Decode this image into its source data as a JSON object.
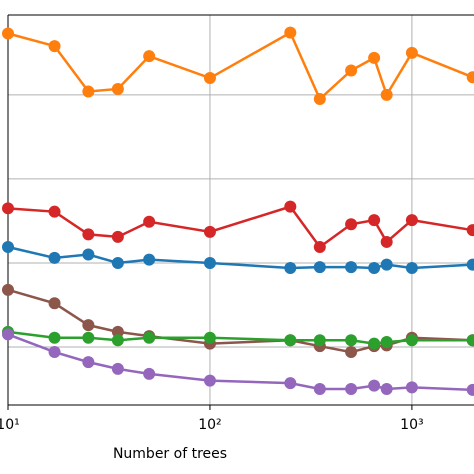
{
  "chart_data": {
    "type": "line",
    "xlabel": "Number of trees",
    "xscale": "log",
    "grid": true,
    "x": [
      10,
      17,
      25,
      35,
      50,
      100,
      250,
      350,
      500,
      650,
      750,
      1000,
      2000
    ],
    "xlim": [
      10,
      2030
    ],
    "xticks": [
      {
        "value": 10,
        "label": "10¹"
      },
      {
        "value": 100,
        "label": "10²"
      },
      {
        "value": 1000,
        "label": "10³"
      }
    ],
    "ylim": [
      0.31,
      4.95
    ],
    "yticks": [
      1,
      2,
      3,
      4
    ],
    "series": [
      {
        "color": "#ff7f0e",
        "values": [
          4.73,
          4.58,
          4.04,
          4.07,
          4.46,
          4.2,
          4.74,
          3.95,
          4.29,
          4.44,
          4.0,
          4.5,
          4.21
        ]
      },
      {
        "color": "#d62728",
        "values": [
          2.65,
          2.61,
          2.34,
          2.31,
          2.49,
          2.37,
          2.67,
          2.19,
          2.46,
          2.51,
          2.25,
          2.51,
          2.39
        ]
      },
      {
        "color": "#1f77b4",
        "values": [
          2.19,
          2.06,
          2.1,
          2.0,
          2.04,
          2.0,
          1.94,
          1.95,
          1.95,
          1.94,
          1.98,
          1.94,
          1.98
        ]
      },
      {
        "color": "#8c564b",
        "values": [
          1.68,
          1.52,
          1.26,
          1.18,
          1.13,
          1.04,
          1.08,
          1.01,
          0.94,
          1.01,
          1.02,
          1.11,
          1.08
        ]
      },
      {
        "color": "#2ca02c",
        "values": [
          1.18,
          1.11,
          1.11,
          1.08,
          1.11,
          1.11,
          1.08,
          1.08,
          1.08,
          1.04,
          1.06,
          1.08,
          1.08
        ]
      },
      {
        "color": "#9467bd",
        "values": [
          1.15,
          0.94,
          0.82,
          0.74,
          0.68,
          0.6,
          0.57,
          0.5,
          0.5,
          0.54,
          0.5,
          0.52,
          0.49
        ]
      }
    ]
  }
}
